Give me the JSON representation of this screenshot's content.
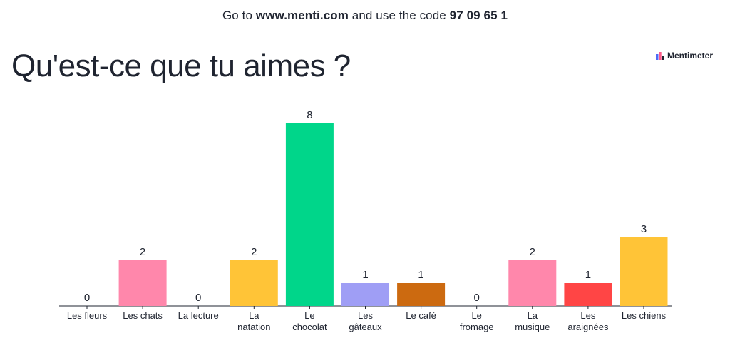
{
  "header": {
    "prefix": "Go to",
    "url": "www.menti.com",
    "middle": "and use the code",
    "code": "97 09 65 1"
  },
  "question": "Qu'est-ce que tu aimes ?",
  "brand": {
    "name": "Mentimeter",
    "icon": "mentimeter-logo-icon"
  },
  "chart_data": {
    "type": "bar",
    "title": "Qu'est-ce que tu aimes ?",
    "xlabel": "",
    "ylabel": "",
    "ylim": [
      0,
      8
    ],
    "grid": false,
    "categories": [
      [
        "Les fleurs"
      ],
      [
        "Les chats"
      ],
      [
        "La lecture"
      ],
      [
        "La",
        "natation"
      ],
      [
        "Le",
        "chocolat"
      ],
      [
        "Les",
        "gâteaux"
      ],
      [
        "Le café"
      ],
      [
        "Le",
        "fromage"
      ],
      [
        "La",
        "musique"
      ],
      [
        "Les",
        "araignées"
      ],
      [
        "Les chiens"
      ]
    ],
    "values": [
      0,
      2,
      0,
      2,
      8,
      1,
      1,
      0,
      2,
      1,
      3
    ],
    "colors": [
      "#6c9bff",
      "#ff87ab",
      "#6c9bff",
      "#ffc437",
      "#00d68a",
      "#9f9ef5",
      "#cc6a10",
      "#6c9bff",
      "#ff87ab",
      "#ff4545",
      "#ffc437"
    ]
  }
}
